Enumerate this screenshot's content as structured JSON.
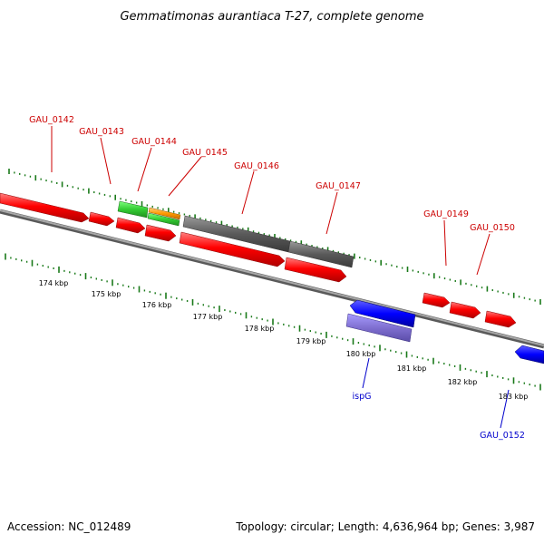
{
  "title": "Gemmatimonas aurantiaca T-27, complete genome",
  "footer": {
    "accession": "Accession: NC_012489",
    "summary": "Topology: circular; Length: 4,636,964 bp; Genes: 3,987"
  },
  "ticks": [
    "174 kbp",
    "175 kbp",
    "176 kbp",
    "177 kbp",
    "178 kbp",
    "179 kbp",
    "180 kbp",
    "181 kbp",
    "182 kbp",
    "183 kbp"
  ],
  "genes": {
    "g0142": "GAU_0142",
    "g0143": "GAU_0143",
    "g0144": "GAU_0144",
    "g0145": "GAU_0145",
    "g0146": "GAU_0146",
    "g0147": "GAU_0147",
    "g0149": "GAU_0149",
    "g0150": "GAU_0150",
    "ispG": "ispG",
    "g0152": "GAU_0152"
  },
  "colors": {
    "cds": "#ff0000",
    "rna_green": "#33cc33",
    "rna_orange": "#ff9900",
    "gray_feature": "#666666",
    "blue_feature": "#0000ff",
    "purple_feature": "#7f6fd0",
    "tick_green": "#1a7a1a",
    "label_red": "#cc0000",
    "label_blue": "#0000cc",
    "backbone": "#808080"
  }
}
